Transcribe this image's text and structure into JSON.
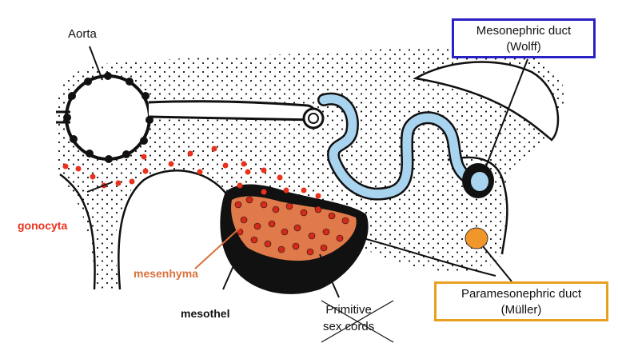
{
  "labels": {
    "aorta": "Aorta",
    "gonocyta": "gonocyta",
    "mesenhyma": "mesenhyma",
    "mesothel": "mesothel",
    "primitive_sex_cords_line1": "Primitive",
    "primitive_sex_cords_line2": "sex cords"
  },
  "boxes": {
    "mesonephric": {
      "line1": "Mesonephric duct",
      "line2": "(Wolff)"
    },
    "paramesonephric": {
      "line1": "Paramesonephric duct",
      "line2": "(Müller)"
    }
  },
  "colors": {
    "gonocyta": "#e8321e",
    "mesenhyma": "#d9713a",
    "mesonephric_box": "#2a21c4",
    "paramesonephric_box": "#e8a020",
    "duct_fill": "#a9d4f0",
    "mullerian_fill": "#f0962a",
    "mesenchyme_fill": "#e07a4a",
    "germ_cell": "#d42a1a"
  }
}
